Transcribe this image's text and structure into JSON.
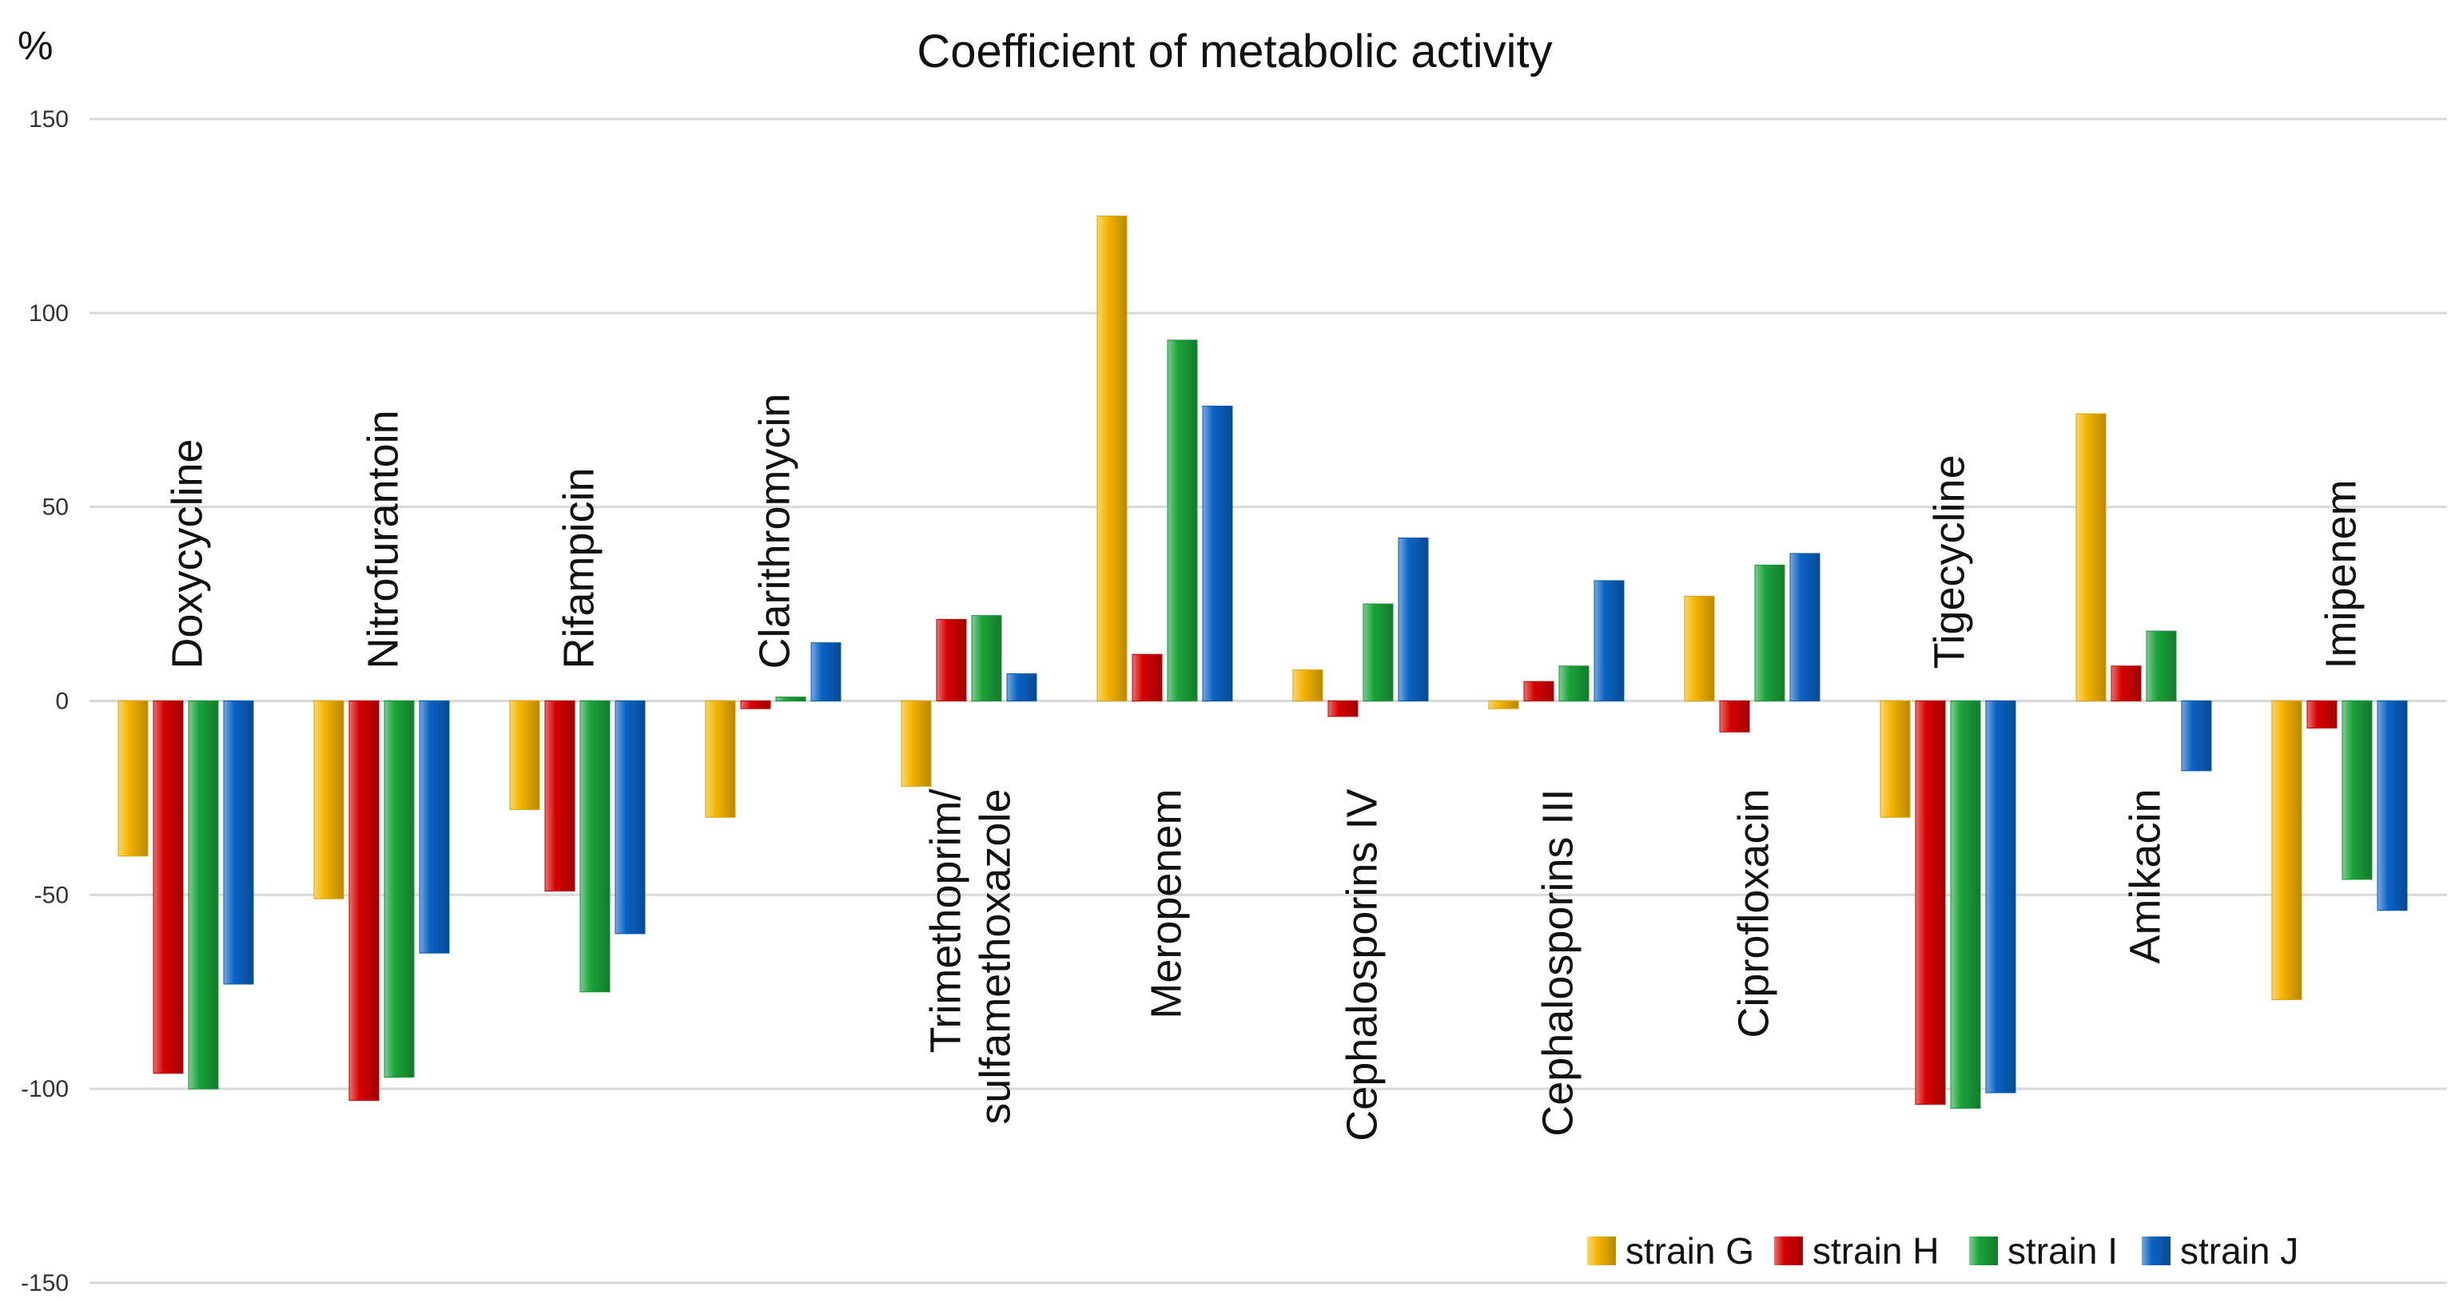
{
  "chart_data": {
    "type": "bar",
    "title": "Coefficient of metabolic activity",
    "ylabel": "%",
    "xlabel": "",
    "ylim": [
      -150,
      150
    ],
    "yticks": [
      150,
      100,
      50,
      0,
      -50,
      -100,
      -150
    ],
    "grid": true,
    "legend_position": "bottom-right",
    "categories": [
      [
        "Doxycycline"
      ],
      [
        "Nitrofurantoin"
      ],
      [
        "Rifampicin"
      ],
      [
        "Clarithromycin"
      ],
      [
        "Trimethoprim/",
        "sulfamethoxazole"
      ],
      [
        "Meropenem"
      ],
      [
        "Cephalosporins IV"
      ],
      [
        "Cephalosporins III"
      ],
      [
        "Ciprofloxacin"
      ],
      [
        "Tigecycline"
      ],
      [
        "Amikacin"
      ],
      [
        "Imipenem"
      ]
    ],
    "series": [
      {
        "name": "strain G",
        "color": "#f5b400",
        "values": [
          -40,
          -51,
          -28,
          -30,
          -22,
          125,
          8,
          -2,
          27,
          -30,
          74,
          -77
        ]
      },
      {
        "name": "strain  H",
        "color": "#d60000",
        "values": [
          -96,
          -103,
          -49,
          -2,
          21,
          12,
          -4,
          5,
          -8,
          -104,
          9,
          -7
        ]
      },
      {
        "name": "strain I",
        "color": "#1aa33a",
        "values": [
          -100,
          -97,
          -75,
          1,
          22,
          93,
          25,
          9,
          35,
          -105,
          18,
          -46
        ]
      },
      {
        "name": "strain J",
        "color": "#0b63c4",
        "values": [
          -73,
          -65,
          -60,
          15,
          7,
          76,
          42,
          31,
          38,
          -101,
          -18,
          -54
        ]
      }
    ]
  }
}
